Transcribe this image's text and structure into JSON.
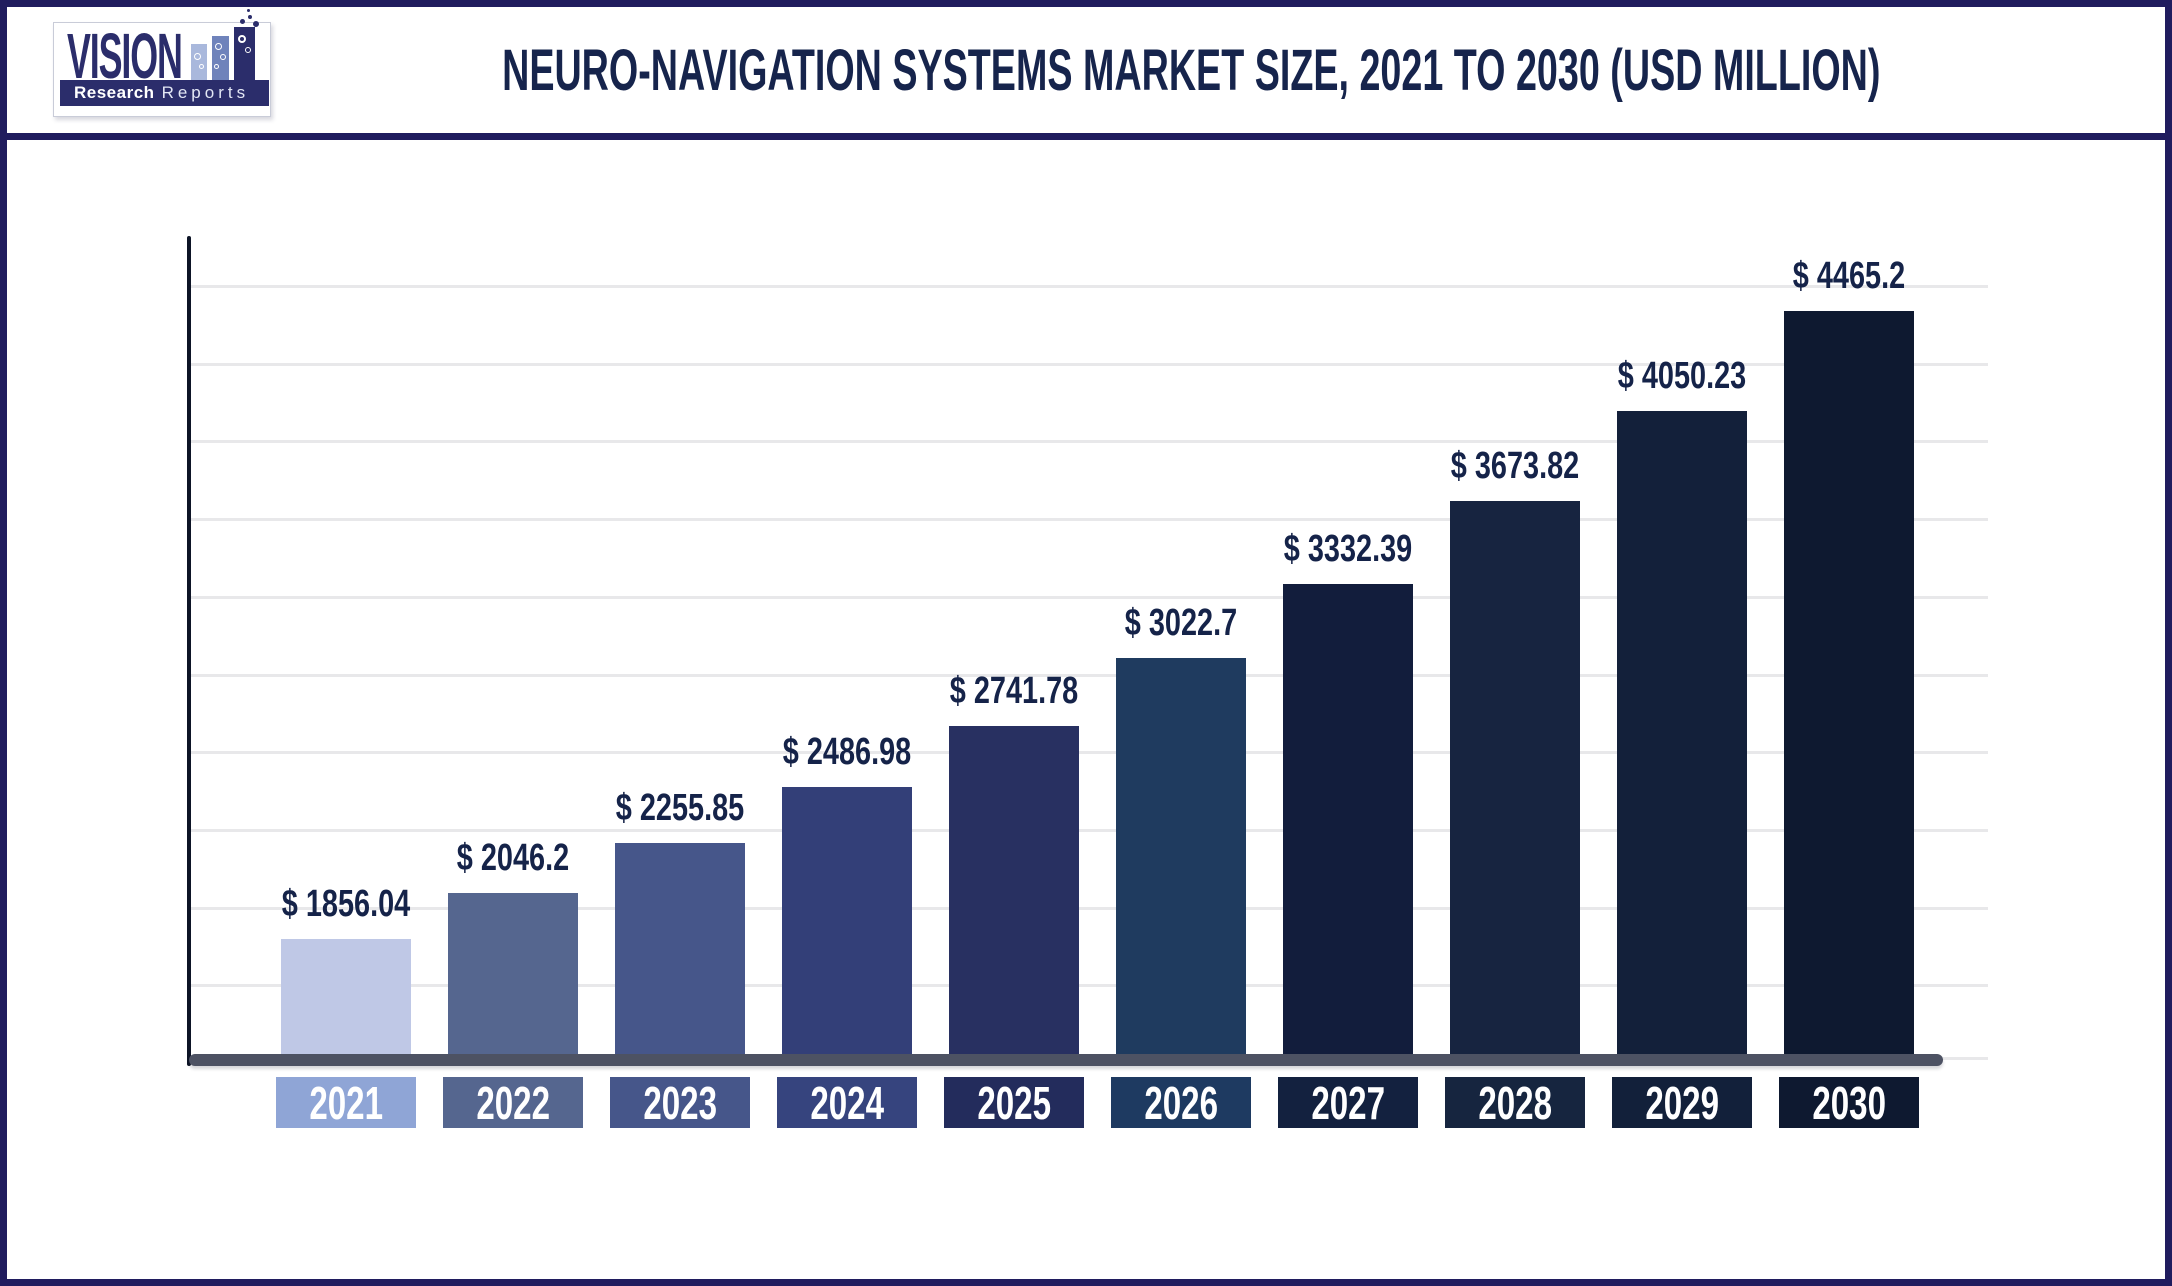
{
  "header": {
    "title": "NEURO-NAVIGATION SYSTEMS MARKET SIZE, 2021 TO 2030 (USD MILLION)"
  },
  "logo": {
    "brand": "VISION",
    "tagline_bold": "Research",
    "tagline_light": "Reports"
  },
  "chart_data": {
    "type": "bar",
    "title": "NEURO-NAVIGATION SYSTEMS MARKET SIZE, 2021 TO 2030 (USD MILLION)",
    "unit": "USD Million",
    "categories": [
      "2021",
      "2022",
      "2023",
      "2024",
      "2025",
      "2026",
      "2027",
      "2028",
      "2029",
      "2030"
    ],
    "values": [
      1856.04,
      2046.2,
      2255.85,
      2486.98,
      2741.78,
      3022.7,
      3332.39,
      3673.82,
      4050.23,
      4465.2
    ],
    "bar_labels": [
      "$ 1856.04",
      "$ 2046.2",
      "$ 2255.85",
      "$ 2486.98",
      "$ 2741.78",
      "$ 3022.7",
      "$ 3332.39",
      "$ 3673.82",
      "$ 4050.23",
      "$ 4465.2"
    ],
    "bar_colors": [
      "#bfc8e6",
      "#55668f",
      "#46568a",
      "#333f78",
      "#283061",
      "#1f3b5f",
      "#121d3c",
      "#172440",
      "#13203a",
      "#0e1930"
    ],
    "tick_colors": [
      "#8fa5d6",
      "#55668f",
      "#46568a",
      "#36447e",
      "#232c5c",
      "#1e3a61",
      "#13213f",
      "#16253f",
      "#12203a",
      "#0e1930"
    ],
    "yaxis": {
      "tick_labels_visible": false,
      "gridline_count": 10,
      "approx_value_range": [
        1380,
        4800
      ]
    },
    "grid": "horizontal",
    "legend_position": "none"
  },
  "colors": {
    "page_border": "#201c5e",
    "title_text": "#16244c",
    "value_label_text": "#152349",
    "axis_bar": "#4d5263",
    "gridline": "#e8e8ea",
    "y_axis_line": "#0d1426",
    "tick_text": "#ffffff",
    "logo_navy": "#2b2d6b",
    "logo_bar_light": "#a9b8dc",
    "logo_bar_mid": "#6f83bb"
  }
}
